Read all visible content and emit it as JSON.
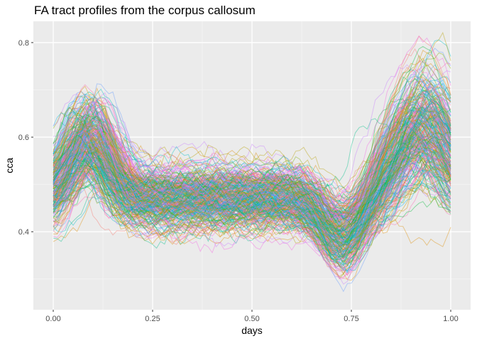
{
  "chart_data": {
    "type": "line",
    "title": "FA tract profiles from the corpus callosum",
    "xlabel": "days",
    "ylabel": "cca",
    "xlim": [
      -0.05,
      1.05
    ],
    "ylim": [
      0.235,
      0.845
    ],
    "x_ticks": [
      0.0,
      0.25,
      0.5,
      0.75,
      1.0
    ],
    "x_tick_labels": [
      "0.00",
      "0.25",
      "0.50",
      "0.75",
      "1.00"
    ],
    "y_ticks": [
      0.4,
      0.6,
      0.8
    ],
    "y_tick_labels": [
      "0.4",
      "0.6",
      "0.8"
    ],
    "grid": true,
    "legend": "none",
    "n_curves": 300,
    "palette": [
      "#F8766D",
      "#DE8C00",
      "#B79F00",
      "#7CAE00",
      "#00BA38",
      "#00C08B",
      "#00BFC4",
      "#00B4F0",
      "#619CFF",
      "#C77CFF",
      "#F564E3",
      "#FF64B0"
    ],
    "mean_profile": {
      "x": [
        0.0,
        0.05,
        0.1,
        0.15,
        0.2,
        0.25,
        0.3,
        0.35,
        0.4,
        0.45,
        0.5,
        0.55,
        0.6,
        0.65,
        0.7,
        0.75,
        0.8,
        0.85,
        0.9,
        0.95,
        1.0
      ],
      "y": [
        0.47,
        0.55,
        0.6,
        0.56,
        0.5,
        0.48,
        0.47,
        0.475,
        0.48,
        0.485,
        0.49,
        0.49,
        0.48,
        0.46,
        0.42,
        0.4,
        0.46,
        0.54,
        0.62,
        0.65,
        0.58
      ]
    }
  }
}
